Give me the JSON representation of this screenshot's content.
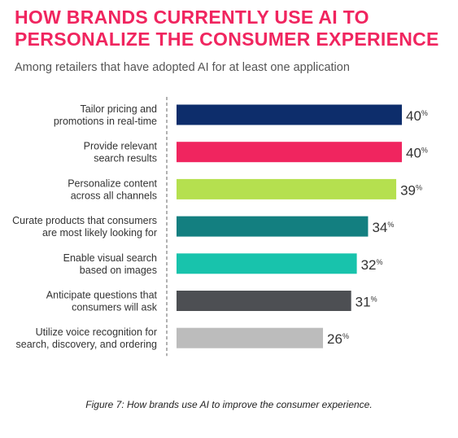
{
  "colors": {
    "title": "#f0255f",
    "text": "#333333",
    "subtitle": "#555555",
    "axis": "#999999"
  },
  "caption": "Figure 7: How brands use AI to improve the consumer experience.",
  "chart_data": {
    "type": "bar",
    "orientation": "horizontal",
    "title": "HOW BRANDS CURRENTLY USE AI TO PERSONALIZE THE CONSUMER EXPERIENCE",
    "subtitle": "Among retailers that have adopted AI for at least one application",
    "value_suffix": "%",
    "xlim": [
      0,
      45
    ],
    "grid": false,
    "categories": [
      [
        "Tailor pricing and",
        "promotions in real-time"
      ],
      [
        "Provide relevant",
        "search results"
      ],
      [
        "Personalize content",
        "across all channels"
      ],
      [
        "Curate products that consumers",
        "are most likely looking for"
      ],
      [
        "Enable visual search",
        "based on images"
      ],
      [
        "Anticipate questions that",
        "consumers will ask"
      ],
      [
        "Utilize voice recognition for",
        "search, discovery, and ordering"
      ]
    ],
    "values": [
      40,
      40,
      39,
      34,
      32,
      31,
      26
    ],
    "bar_colors": [
      "#0d2d6b",
      "#f0255f",
      "#b5e04f",
      "#137f80",
      "#18c3ac",
      "#4d4f53",
      "#bcbcbc"
    ]
  }
}
